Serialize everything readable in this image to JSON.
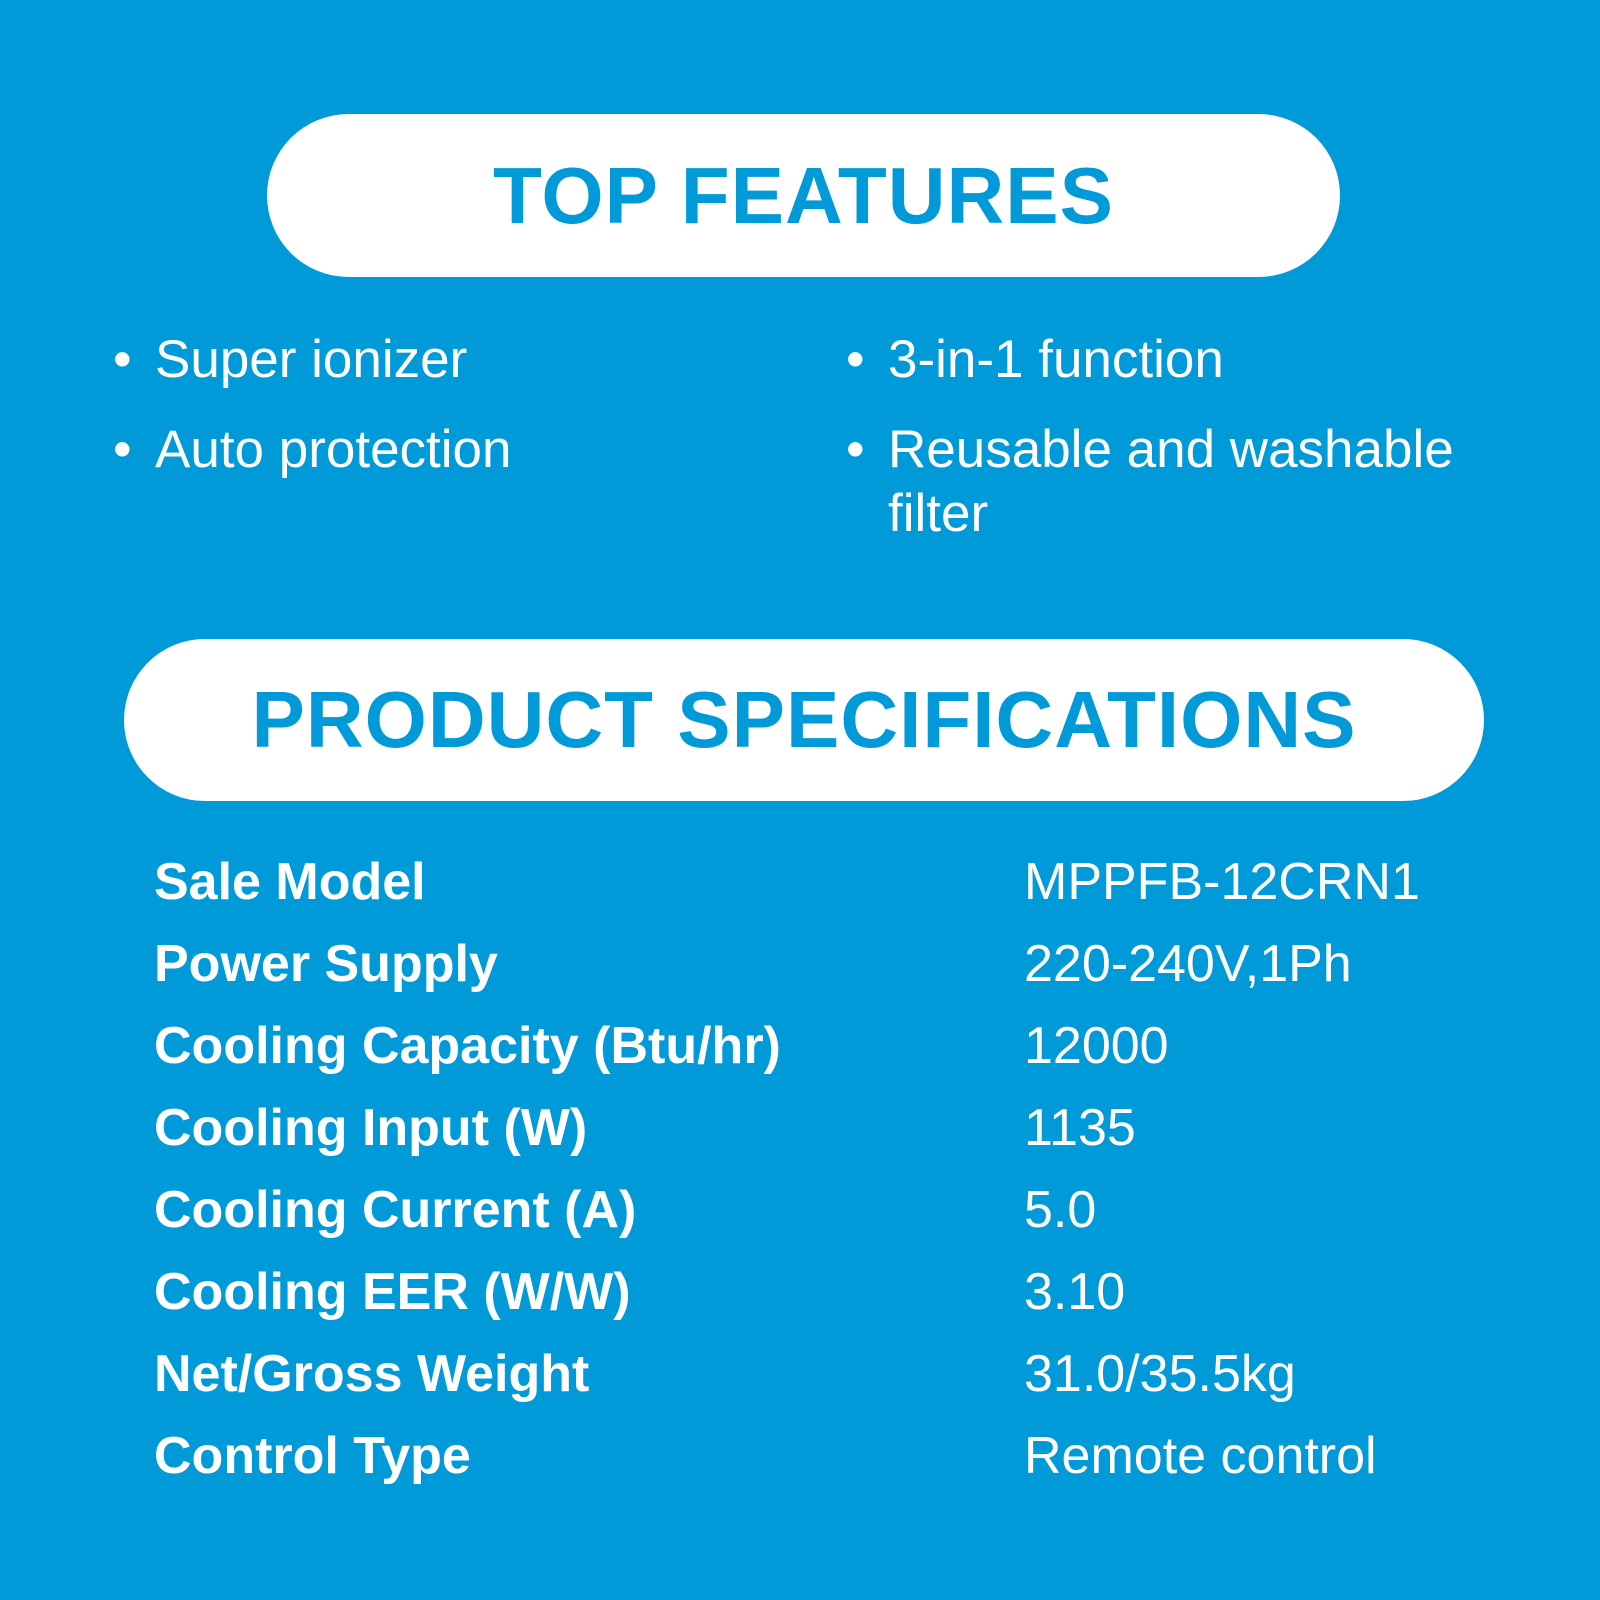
{
  "top_features": {
    "title": "TOP FEATURES",
    "items": [
      "Super ionizer",
      "Auto protection",
      "3-in-1 function",
      "Reusable and washable filter"
    ]
  },
  "specs": {
    "title": "PRODUCT SPECIFICATIONS",
    "rows": [
      {
        "label": "Sale Model",
        "value": "MPPFB-12CRN1"
      },
      {
        "label": "Power Supply",
        "value": "220-240V,1Ph"
      },
      {
        "label": "Cooling Capacity (Btu/hr)",
        "value": "12000"
      },
      {
        "label": "Cooling Input (W)",
        "value": "1135"
      },
      {
        "label": "Cooling Current (A)",
        "value": "5.0"
      },
      {
        "label": "Cooling EER (W/W)",
        "value": "3.10"
      },
      {
        "label": "Net/Gross Weight",
        "value": "31.0/35.5kg"
      },
      {
        "label": "Control Type",
        "value": "Remote control"
      }
    ]
  },
  "colors": {
    "background": "#009ad9",
    "pill": "#ffffff"
  }
}
